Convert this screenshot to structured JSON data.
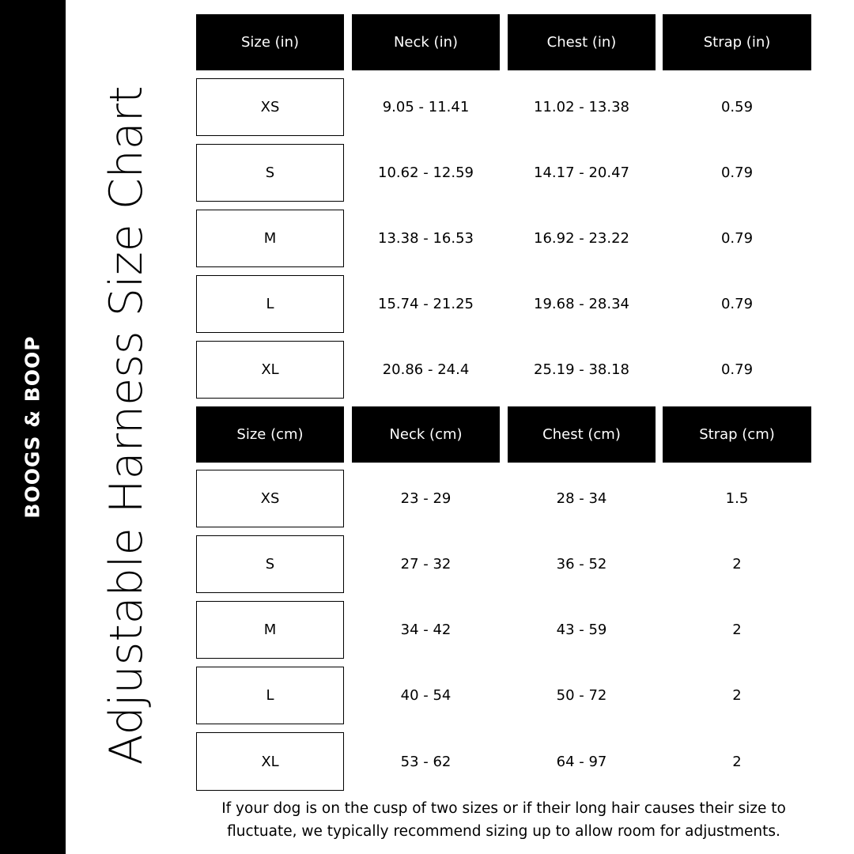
{
  "brand": {
    "logo_text": "BOOGS & BOOP",
    "sidebar_color": "#000000"
  },
  "title": "Adjustable Harness Size Chart",
  "tables": [
    {
      "headers": [
        "Size (in)",
        "Neck (in)",
        "Chest (in)",
        "Strap (in)"
      ],
      "rows": [
        [
          "XS",
          "9.05 - 11.41",
          "11.02 - 13.38",
          "0.59"
        ],
        [
          "S",
          "10.62 - 12.59",
          "14.17 - 20.47",
          "0.79"
        ],
        [
          "M",
          "13.38 - 16.53",
          "16.92 - 23.22",
          "0.79"
        ],
        [
          "L",
          "15.74 - 21.25",
          "19.68 - 28.34",
          "0.79"
        ],
        [
          "XL",
          "20.86 - 24.4",
          "25.19 - 38.18",
          "0.79"
        ]
      ]
    },
    {
      "headers": [
        "Size (cm)",
        "Neck (cm)",
        "Chest (cm)",
        "Strap (cm)"
      ],
      "rows": [
        [
          "XS",
          "23 - 29",
          "28 - 34",
          "1.5"
        ],
        [
          "S",
          "27 - 32",
          "36 - 52",
          "2"
        ],
        [
          "M",
          "34 - 42",
          "43 - 59",
          "2"
        ],
        [
          "L",
          "40 - 54",
          "50 - 72",
          "2"
        ],
        [
          "XL",
          "53 - 62",
          "64 - 97",
          "2"
        ]
      ]
    }
  ],
  "note_line1": "If your dog is on the cusp of two sizes or if their long hair causes their size to",
  "note_line2": "fluctuate, we typically recommend sizing up to allow room for adjustments."
}
